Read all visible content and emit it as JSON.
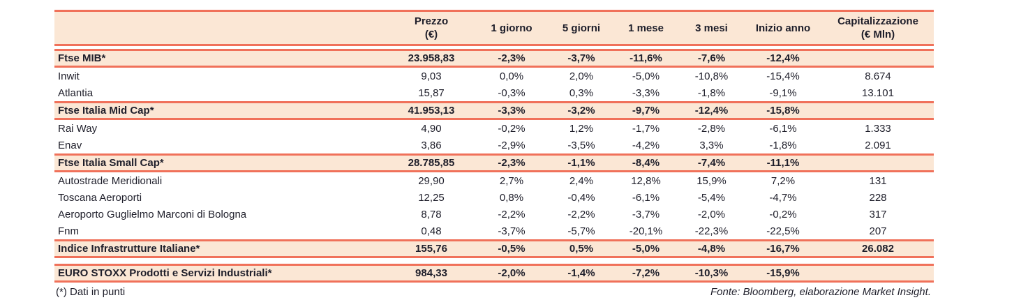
{
  "table": {
    "columns": [
      {
        "line1": "Prezzo",
        "line2": "(€)"
      },
      {
        "line1": "1 giorno"
      },
      {
        "line1": "5 giorni"
      },
      {
        "line1": "1 mese"
      },
      {
        "line1": "3 mesi"
      },
      {
        "line1": "Inizio anno"
      },
      {
        "line1": "Capitalizzazione",
        "line2": "(€ Mln)"
      }
    ],
    "rows": [
      {
        "name": "Ftse MIB*",
        "style": "index",
        "values": [
          "23.958,83",
          "-2,3%",
          "-3,7%",
          "-11,6%",
          "-7,6%",
          "-12,4%",
          ""
        ]
      },
      {
        "name": "Inwit",
        "style": "stock",
        "values": [
          "9,03",
          "0,0%",
          "2,0%",
          "-5,0%",
          "-10,8%",
          "-15,4%",
          "8.674"
        ]
      },
      {
        "name": "Atlantia",
        "style": "stock",
        "values": [
          "15,87",
          "-0,3%",
          "0,3%",
          "-3,3%",
          "-1,8%",
          "-9,1%",
          "13.101"
        ]
      },
      {
        "name": "Ftse Italia Mid Cap*",
        "style": "index",
        "values": [
          "41.953,13",
          "-3,3%",
          "-3,2%",
          "-9,7%",
          "-12,4%",
          "-15,8%",
          ""
        ]
      },
      {
        "name": "Rai Way",
        "style": "stock",
        "values": [
          "4,90",
          "-0,2%",
          "1,2%",
          "-1,7%",
          "-2,8%",
          "-6,1%",
          "1.333"
        ]
      },
      {
        "name": "Enav",
        "style": "stock",
        "values": [
          "3,86",
          "-2,9%",
          "-3,5%",
          "-4,2%",
          "3,3%",
          "-1,8%",
          "2.091"
        ]
      },
      {
        "name": "Ftse Italia Small Cap*",
        "style": "index",
        "values": [
          "28.785,85",
          "-2,3%",
          "-1,1%",
          "-8,4%",
          "-7,4%",
          "-11,1%",
          ""
        ]
      },
      {
        "name": "Autostrade Meridionali",
        "style": "stock",
        "values": [
          "29,90",
          "2,7%",
          "2,4%",
          "12,8%",
          "15,9%",
          "7,2%",
          "131"
        ]
      },
      {
        "name": "Toscana Aeroporti",
        "style": "stock",
        "values": [
          "12,25",
          "0,8%",
          "-0,4%",
          "-6,1%",
          "-5,4%",
          "-4,7%",
          "228"
        ]
      },
      {
        "name": "Aeroporto Guglielmo Marconi di Bologna",
        "style": "stock",
        "values": [
          "8,78",
          "-2,2%",
          "-2,2%",
          "-3,7%",
          "-2,0%",
          "-0,2%",
          "317"
        ]
      },
      {
        "name": "Fnm",
        "style": "stock",
        "values": [
          "0,48",
          "-3,7%",
          "-5,7%",
          "-20,1%",
          "-22,3%",
          "-22,5%",
          "207"
        ]
      },
      {
        "name": "Indice Infrastrutture Italiane*",
        "style": "index",
        "values": [
          "155,76",
          "-0,5%",
          "0,5%",
          "-5,0%",
          "-4,8%",
          "-16,7%",
          "26.082"
        ]
      },
      {
        "name": "EURO STOXX Prodotti e Servizi Industriali*",
        "style": "index",
        "separated": true,
        "values": [
          "984,33",
          "-2,0%",
          "-1,4%",
          "-7,2%",
          "-10,3%",
          "-15,9%",
          ""
        ]
      }
    ]
  },
  "footer": {
    "note": "(*) Dati in punti",
    "source": "Fonte: Bloomberg, elaborazione Market Insight."
  },
  "colors": {
    "accent_border": "#F0715A",
    "band_fill": "#FBE7D5",
    "text": "#1E1E2A"
  }
}
